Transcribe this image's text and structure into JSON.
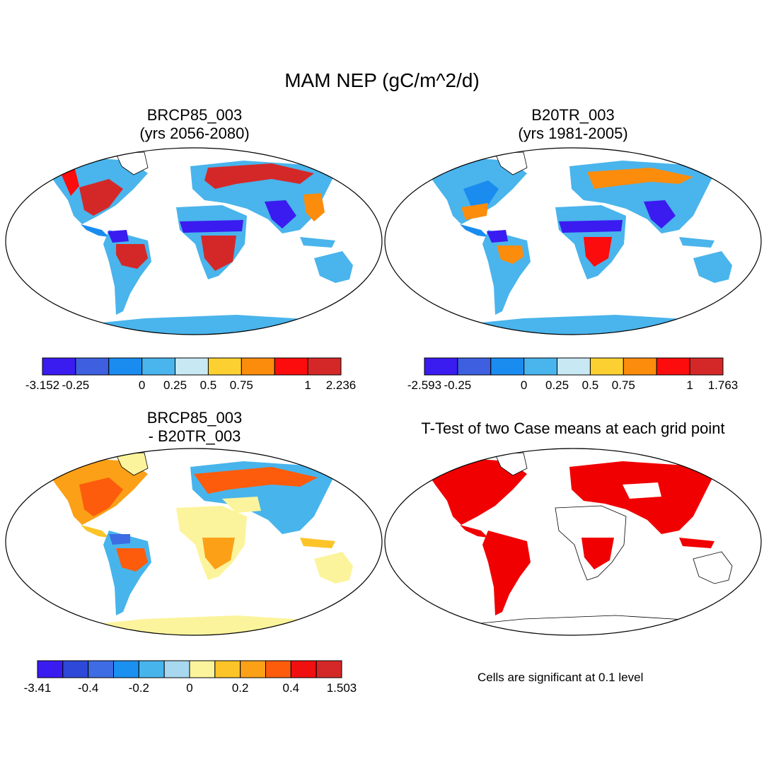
{
  "title": "MAM NEP (gC/m^2/d)",
  "panels": [
    {
      "title_line1": "BRCP85_003",
      "title_line2": "(yrs 2056-2080)",
      "colorbar": {
        "colors": [
          "#3a1cf0",
          "#3d5fe0",
          "#1a8cf0",
          "#4ab4ec",
          "#c8e8f4",
          "#fcd030",
          "#fc8c0c",
          "#fc0c0c",
          "#d42828"
        ],
        "tick_labels": [
          "-3.152",
          "-0.25",
          "0",
          "0.25",
          "0.5",
          "0.75",
          "1",
          "2.236"
        ]
      }
    },
    {
      "title_line1": "B20TR_003",
      "title_line2": "(yrs 1981-2005)",
      "colorbar": {
        "colors": [
          "#3a1cf0",
          "#3d5fe0",
          "#1a8cf0",
          "#4ab4ec",
          "#c8e8f4",
          "#fcd030",
          "#fc8c0c",
          "#fc0c0c",
          "#d42828"
        ],
        "tick_labels": [
          "-2.593",
          "-0.25",
          "0",
          "0.25",
          "0.5",
          "0.75",
          "1",
          "1.763"
        ]
      }
    },
    {
      "title_line1": "BRCP85_003",
      "title_line2": "- B20TR_003",
      "colorbar": {
        "colors": [
          "#3a1cf0",
          "#2e48d8",
          "#3d6ce4",
          "#1a90f0",
          "#48b4ec",
          "#a8d8f0",
          "#fcf49c",
          "#fcc428",
          "#fca018",
          "#fc5c0c",
          "#f01010",
          "#d42828"
        ],
        "tick_labels": [
          "-3.41",
          "-0.4",
          "-0.2",
          "0",
          "0.2",
          "0.4",
          "1.503"
        ]
      }
    },
    {
      "title_line1": "T-Test of two Case means at each grid point",
      "note": "Cells are significant at 0.1 level",
      "significant_color": "#f00000"
    }
  ]
}
